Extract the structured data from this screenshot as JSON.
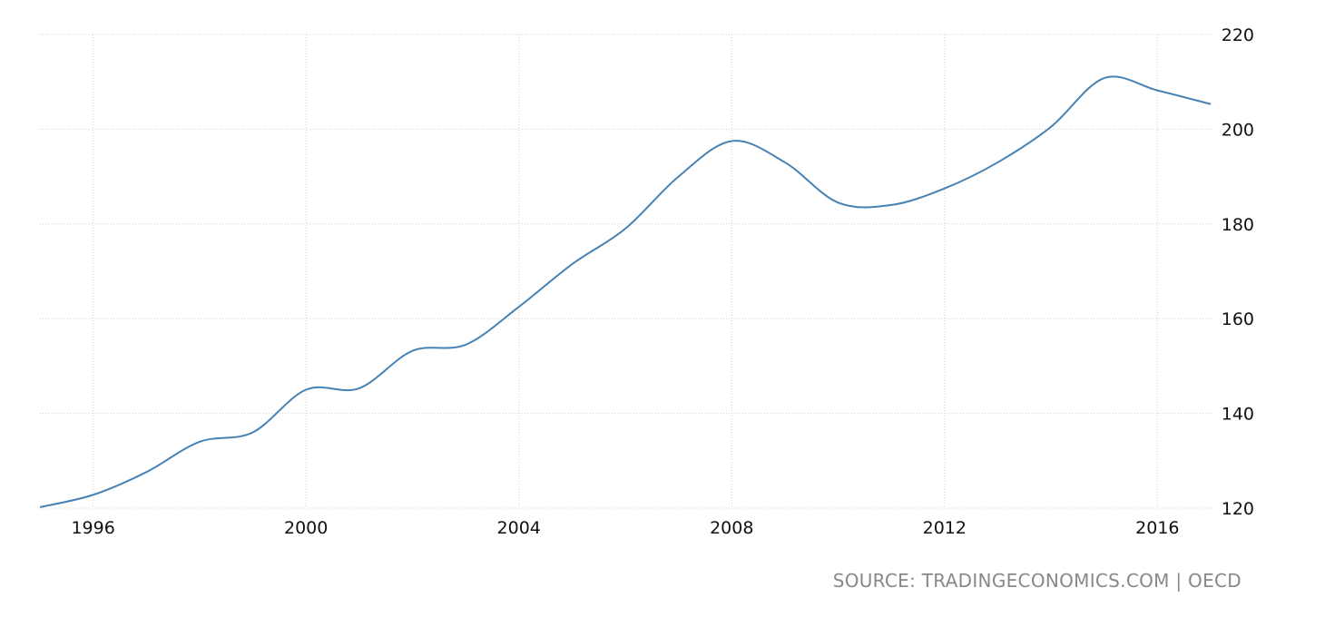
{
  "source": "SOURCE: TRADINGECONOMICS.COM | OECD",
  "chart_data": {
    "type": "line",
    "title": "",
    "xlabel": "",
    "ylabel": "",
    "xlim": [
      1995,
      2017
    ],
    "ylim": [
      120,
      220
    ],
    "x_ticks": [
      1996,
      2000,
      2004,
      2008,
      2012,
      2016
    ],
    "y_ticks": [
      120,
      140,
      160,
      180,
      200,
      220
    ],
    "grid": true,
    "legend": "none",
    "y_axis_position": "right",
    "series": [
      {
        "color": "#4682b4",
        "x": [
          1995.0,
          1996.0,
          1997.0,
          1998.0,
          1999.0,
          2000.0,
          2001.0,
          2002.0,
          2003.0,
          2004.0,
          2005.0,
          2006.0,
          2007.0,
          2008.0,
          2009.0,
          2010.0,
          2011.0,
          2012.0,
          2013.0,
          2014.0,
          2015.0,
          2016.0,
          2017.0
        ],
        "values": [
          120.2,
          122.8,
          127.6,
          134.0,
          136.0,
          145.0,
          145.3,
          153.2,
          154.5,
          162.5,
          171.5,
          179.0,
          190.0,
          197.5,
          193.0,
          184.5,
          184.0,
          187.5,
          193.0,
          200.5,
          210.8,
          208.2,
          205.3
        ]
      }
    ]
  }
}
